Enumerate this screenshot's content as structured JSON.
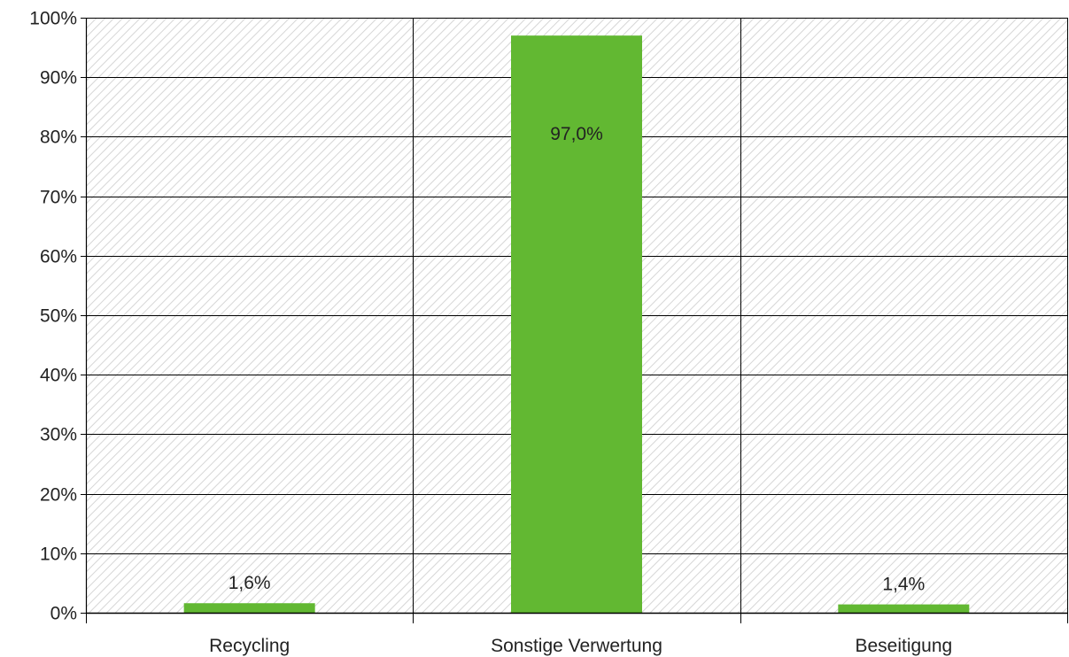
{
  "chart_data": {
    "type": "bar",
    "categories": [
      "Recycling",
      "Sonstige Verwertung",
      "Beseitigung"
    ],
    "values": [
      1.6,
      97.0,
      1.4
    ],
    "data_labels": [
      "1,6%",
      "97,0%",
      "1,4%"
    ],
    "title": "",
    "xlabel": "",
    "ylabel": "",
    "ylim": [
      0,
      100
    ],
    "yticks": [
      0,
      10,
      20,
      30,
      40,
      50,
      60,
      70,
      80,
      90,
      100
    ],
    "ytick_labels": [
      "0%",
      "10%",
      "20%",
      "30%",
      "40%",
      "50%",
      "60%",
      "70%",
      "80%",
      "90%",
      "100%"
    ],
    "grid": true,
    "legend": "none",
    "colors": {
      "bar": "#62b832",
      "plot_background_hatch": "#d6d6d6",
      "gridline": "#000000"
    }
  }
}
